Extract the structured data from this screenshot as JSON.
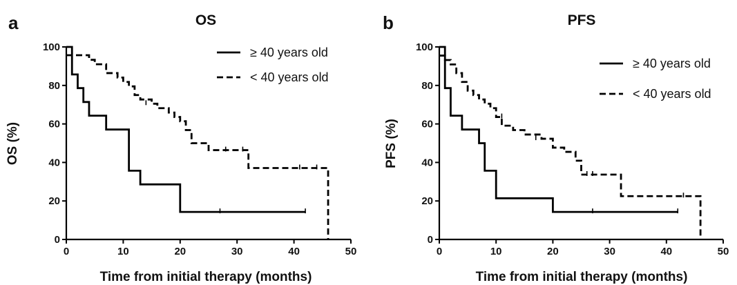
{
  "chart_data": [
    {
      "panel": "a",
      "type": "line",
      "step": true,
      "title": "OS",
      "xlabel": "Time from initial therapy  (months)",
      "ylabel": "OS  (%)",
      "xlim": [
        0,
        50
      ],
      "ylim": [
        0,
        100
      ],
      "xticks": [
        0,
        10,
        20,
        30,
        40,
        50
      ],
      "yticks": [
        0,
        20,
        40,
        60,
        80,
        100
      ],
      "legend_placement": "top-right",
      "series": [
        {
          "name": "≥  40 years old",
          "style": "solid",
          "color": "#000000",
          "x": [
            0,
            1,
            2,
            3,
            4,
            7,
            11,
            12,
            13,
            20,
            42
          ],
          "y": [
            100,
            85.7,
            78.6,
            71.4,
            64.3,
            57.1,
            35.7,
            35.7,
            28.6,
            14.3,
            14.3
          ],
          "censored": [
            [
              27,
              14.3
            ],
            [
              42,
              14.3
            ]
          ]
        },
        {
          "name": "< 40 years old",
          "style": "dashed",
          "color": "#000000",
          "x": [
            0,
            3,
            4,
            5,
            7,
            9,
            10,
            11,
            12,
            13,
            15,
            16,
            18,
            19,
            20,
            21,
            22,
            24,
            25,
            32,
            46,
            46
          ],
          "y": [
            95.7,
            95.7,
            93.3,
            91.0,
            86.4,
            84.1,
            81.8,
            79.5,
            75.0,
            72.7,
            70.5,
            68.2,
            65.9,
            63.6,
            61.4,
            56.8,
            50.0,
            50.0,
            46.4,
            37.1,
            37.1,
            0
          ],
          "censored": [
            [
              14,
              70.5
            ],
            [
              28,
              46.4
            ],
            [
              31,
              46.4
            ],
            [
              41,
              37.1
            ],
            [
              44,
              37.1
            ]
          ]
        }
      ]
    },
    {
      "panel": "b",
      "type": "line",
      "step": true,
      "title": "PFS",
      "xlabel": "Time from initial therapy  (months)",
      "ylabel": "PFS  (%)",
      "xlim": [
        0,
        50
      ],
      "ylim": [
        0,
        100
      ],
      "xticks": [
        0,
        10,
        20,
        30,
        40,
        50
      ],
      "yticks": [
        0,
        20,
        40,
        60,
        80,
        100
      ],
      "legend_placement": "top-right",
      "series": [
        {
          "name": "≥  40 years old",
          "style": "solid",
          "color": "#000000",
          "x": [
            0,
            1,
            2,
            4,
            7,
            8,
            10,
            20,
            42
          ],
          "y": [
            100,
            78.6,
            64.3,
            57.1,
            50.0,
            35.7,
            21.4,
            14.3,
            14.3
          ],
          "censored": [
            [
              27,
              14.3
            ],
            [
              42,
              14.3
            ]
          ]
        },
        {
          "name": "< 40 years old",
          "style": "dashed",
          "color": "#000000",
          "x": [
            0,
            1,
            2,
            3,
            4,
            5,
            6,
            7,
            8,
            9,
            10,
            11,
            13,
            15,
            18,
            20,
            22,
            24,
            25,
            32,
            46,
            46
          ],
          "y": [
            95.5,
            93.2,
            90.9,
            86.4,
            81.8,
            77.3,
            75.0,
            72.7,
            70.5,
            68.2,
            63.6,
            59.1,
            56.8,
            54.5,
            52.3,
            47.7,
            45.5,
            40.9,
            33.7,
            22.5,
            22.5,
            0
          ],
          "censored": [
            [
              11,
              63.6
            ],
            [
              17,
              52.3
            ],
            [
              26,
              33.7
            ],
            [
              27,
              33.7
            ],
            [
              43,
              22.5
            ]
          ]
        }
      ]
    }
  ]
}
